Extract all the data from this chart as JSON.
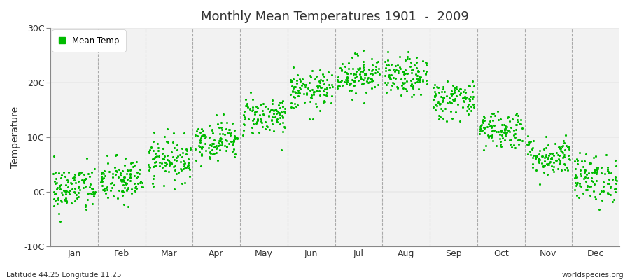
{
  "title": "Monthly Mean Temperatures 1901  -  2009",
  "ylabel": "Temperature",
  "bottom_left_text": "Latitude 44.25 Longitude 11.25",
  "bottom_right_text": "worldspecies.org",
  "legend_label": "Mean Temp",
  "dot_color": "#00BB00",
  "plot_bg_color": "#F2F2F2",
  "figure_bg_color": "#FFFFFF",
  "ylim": [
    -10,
    30
  ],
  "yticks": [
    -10,
    0,
    10,
    20,
    30
  ],
  "ytick_labels": [
    "-10C",
    "0C",
    "10C",
    "20C",
    "30C"
  ],
  "months": [
    "Jan",
    "Feb",
    "Mar",
    "Apr",
    "May",
    "Jun",
    "Jul",
    "Aug",
    "Sep",
    "Oct",
    "Nov",
    "Dec"
  ],
  "month_means": [
    0.5,
    2.0,
    6.0,
    9.5,
    14.0,
    18.5,
    21.5,
    21.0,
    17.0,
    11.5,
    6.5,
    2.5
  ],
  "month_stds": [
    2.2,
    2.2,
    2.0,
    1.8,
    1.8,
    1.8,
    1.8,
    1.8,
    1.8,
    1.8,
    1.8,
    2.2
  ],
  "n_years": 109,
  "seed": 42,
  "dot_size": 5
}
